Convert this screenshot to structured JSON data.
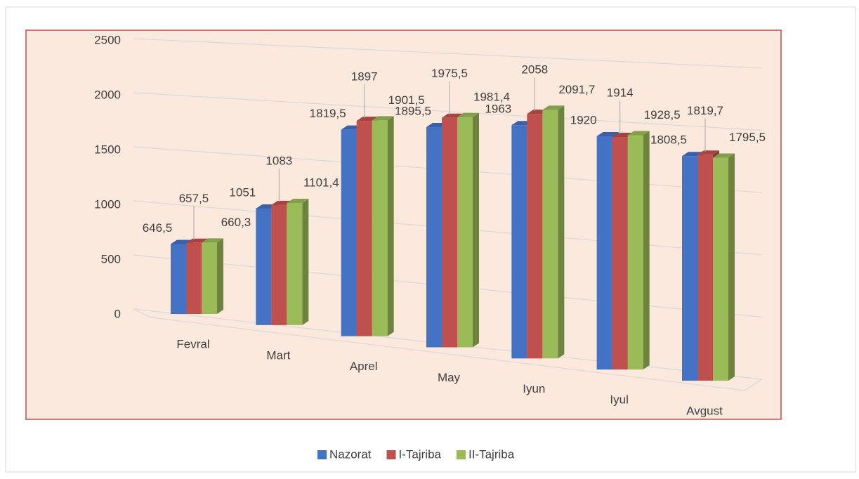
{
  "chart_data": {
    "type": "bar3d",
    "categories": [
      "Fevral",
      "Mart",
      "Aprel",
      "May",
      "Iyun",
      "Iyul",
      "Avgust"
    ],
    "series": [
      {
        "name": "Nazorat",
        "color": "#4472c4",
        "values": [
          646.5,
          1051,
          1819.5,
          1895.5,
          1963,
          1920,
          1808.5
        ],
        "value_labels": [
          "646,5",
          "1051",
          "1819,5",
          "1895,5",
          "1963",
          "1920",
          "1808,5"
        ]
      },
      {
        "name": "I-Tajriba",
        "color": "#c0504d",
        "values": [
          657.5,
          1083,
          1897,
          1975.5,
          2058,
          1914,
          1819.7
        ],
        "value_labels": [
          "657,5",
          "1083",
          "1897",
          "1975,5",
          "2058",
          "1914",
          "1819,7"
        ]
      },
      {
        "name": "II-Tajriba",
        "color": "#9bbb59",
        "values": [
          660.3,
          1101.4,
          1901.5,
          1981.4,
          2091.7,
          1928.5,
          1795.5
        ],
        "value_labels": [
          "660,3",
          "1101,4",
          "1901,5",
          "1981,4",
          "2091,7",
          "1928,5",
          "1795,5"
        ]
      }
    ],
    "ylim": [
      0,
      2500
    ],
    "yticks": [
      0,
      500,
      1000,
      1500,
      2000,
      2500
    ],
    "grid": true,
    "legend": "bottom"
  }
}
